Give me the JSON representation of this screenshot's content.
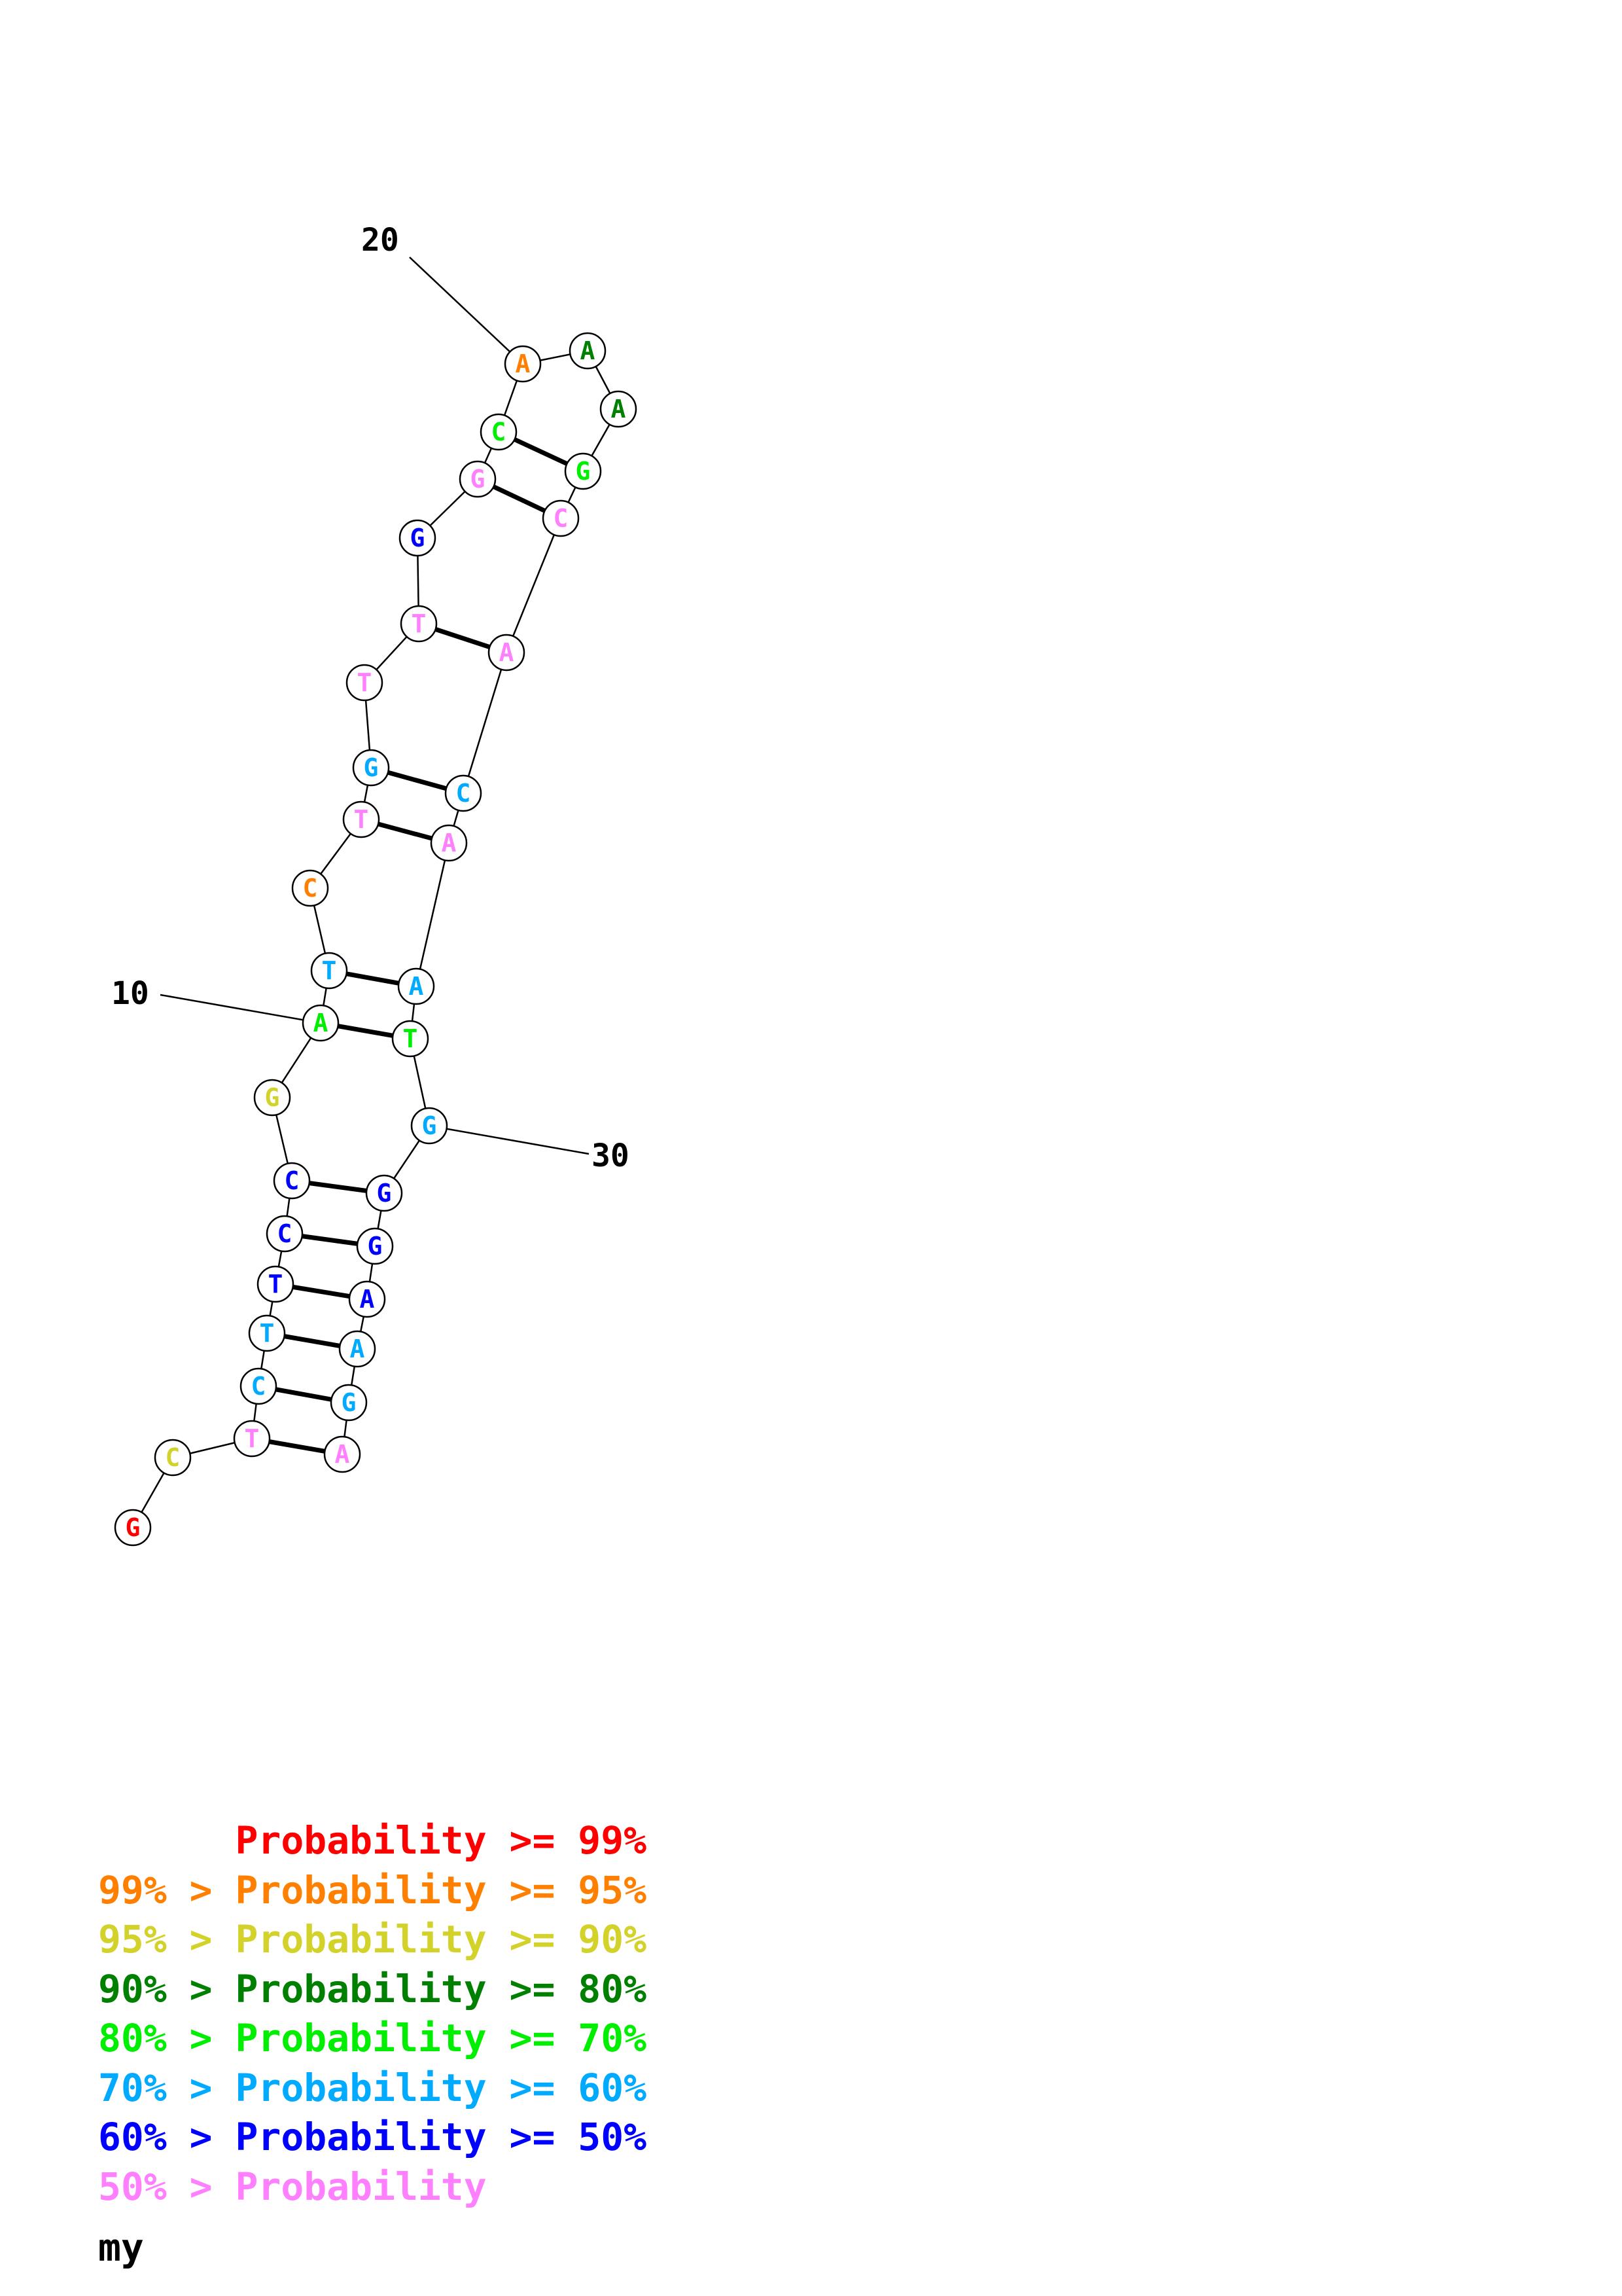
{
  "colors": {
    "p99": "#ff0000",
    "p95": "#ff8000",
    "p90": "#d2d22a",
    "p80": "#008000",
    "p70": "#00ee00",
    "p60": "#00aaff",
    "p50": "#0000ff",
    "plow": "#ff80ff"
  },
  "nucleotides": [
    {
      "i": 1,
      "base": "G",
      "prob": "p99"
    },
    {
      "i": 2,
      "base": "C",
      "prob": "p90"
    },
    {
      "i": 3,
      "base": "T",
      "prob": "plow"
    },
    {
      "i": 4,
      "base": "C",
      "prob": "p60"
    },
    {
      "i": 5,
      "base": "T",
      "prob": "p60"
    },
    {
      "i": 6,
      "base": "T",
      "prob": "p50"
    },
    {
      "i": 7,
      "base": "C",
      "prob": "p50"
    },
    {
      "i": 8,
      "base": "C",
      "prob": "p50"
    },
    {
      "i": 9,
      "base": "G",
      "prob": "p90"
    },
    {
      "i": 10,
      "base": "A",
      "prob": "p70"
    },
    {
      "i": 11,
      "base": "T",
      "prob": "p60"
    },
    {
      "i": 12,
      "base": "C",
      "prob": "p95"
    },
    {
      "i": 13,
      "base": "T",
      "prob": "plow"
    },
    {
      "i": 14,
      "base": "G",
      "prob": "p60"
    },
    {
      "i": 15,
      "base": "T",
      "prob": "plow"
    },
    {
      "i": 16,
      "base": "T",
      "prob": "plow"
    },
    {
      "i": 17,
      "base": "G",
      "prob": "p50"
    },
    {
      "i": 18,
      "base": "G",
      "prob": "plow"
    },
    {
      "i": 19,
      "base": "C",
      "prob": "p70"
    },
    {
      "i": 20,
      "base": "A",
      "prob": "p95"
    },
    {
      "i": 21,
      "base": "A",
      "prob": "p80"
    },
    {
      "i": 22,
      "base": "A",
      "prob": "p80"
    },
    {
      "i": 23,
      "base": "G",
      "prob": "p70"
    },
    {
      "i": 24,
      "base": "C",
      "prob": "plow"
    },
    {
      "i": 25,
      "base": "A",
      "prob": "plow"
    },
    {
      "i": 26,
      "base": "C",
      "prob": "p60"
    },
    {
      "i": 27,
      "base": "A",
      "prob": "plow"
    },
    {
      "i": 28,
      "base": "A",
      "prob": "p60"
    },
    {
      "i": 29,
      "base": "T",
      "prob": "p70"
    },
    {
      "i": 30,
      "base": "G",
      "prob": "p60"
    },
    {
      "i": 31,
      "base": "G",
      "prob": "p50"
    },
    {
      "i": 32,
      "base": "G",
      "prob": "p50"
    },
    {
      "i": 33,
      "base": "A",
      "prob": "p50"
    },
    {
      "i": 34,
      "base": "A",
      "prob": "p60"
    },
    {
      "i": 35,
      "base": "G",
      "prob": "p60"
    },
    {
      "i": 36,
      "base": "A",
      "prob": "plow"
    }
  ],
  "pairs": [
    [
      3,
      36
    ],
    [
      4,
      35
    ],
    [
      5,
      34
    ],
    [
      6,
      33
    ],
    [
      7,
      32
    ],
    [
      8,
      31
    ],
    [
      10,
      29
    ],
    [
      11,
      28
    ],
    [
      13,
      27
    ],
    [
      14,
      26
    ],
    [
      16,
      25
    ],
    [
      18,
      24
    ],
    [
      19,
      23
    ]
  ],
  "position_labels": [
    {
      "nuc": 10,
      "text": "10"
    },
    {
      "nuc": 20,
      "text": "20"
    },
    {
      "nuc": 30,
      "text": "30"
    }
  ],
  "legend": [
    {
      "prefix": "    ",
      "text": "Probability >= 99%",
      "color": "p99"
    },
    {
      "prefix": "99% > ",
      "text": "Probability >= 95%",
      "color": "p95"
    },
    {
      "prefix": "95% > ",
      "text": "Probability >= 90%",
      "color": "p90"
    },
    {
      "prefix": "90% > ",
      "text": "Probability >= 80%",
      "color": "p80"
    },
    {
      "prefix": "80% > ",
      "text": "Probability >= 70%",
      "color": "p70"
    },
    {
      "prefix": "70% > ",
      "text": "Probability >= 60%",
      "color": "p60"
    },
    {
      "prefix": "60% > ",
      "text": "Probability >= 50%",
      "color": "p50"
    },
    {
      "prefix": "50% > ",
      "text": "Probability",
      "color": "plow"
    }
  ],
  "caption": "my"
}
